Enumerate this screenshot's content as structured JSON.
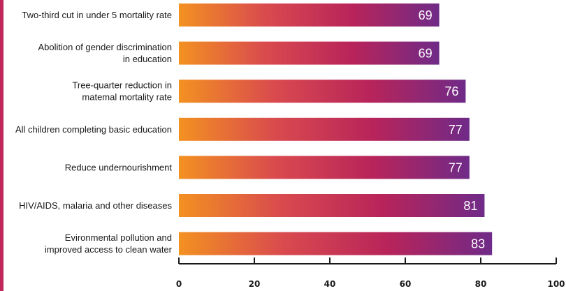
{
  "chart_data": {
    "type": "bar",
    "orientation": "horizontal",
    "categories": [
      "Two-third cut in under 5 mortality rate",
      "Abolition of gender discrimination in education",
      "Tree-quarter reduction in matemal mortality rate",
      "All children completing basic education",
      "Reduce undernourishment",
      "HIV/AIDS, malaria and other diseases",
      "Evironmental pollution and improved access to clean water"
    ],
    "category_lines": [
      [
        "Two-third cut in under 5 mortality rate"
      ],
      [
        "Abolition of gender discrimination",
        "in education"
      ],
      [
        "Tree-quarter reduction in",
        "matemal mortality rate"
      ],
      [
        "All children completing basic education"
      ],
      [
        "Reduce undernourishment"
      ],
      [
        "HIV/AIDS, malaria and other diseases"
      ],
      [
        "Evironmental pollution and",
        "improved access to clean water"
      ]
    ],
    "values": [
      69,
      69,
      76,
      77,
      77,
      81,
      83
    ],
    "value_labels": [
      "69",
      "69",
      "76",
      "77",
      "77",
      "81",
      "83"
    ],
    "xlim": [
      0,
      100
    ],
    "ticks": [
      0,
      20,
      40,
      60,
      80,
      100
    ],
    "tick_labels": [
      "0",
      "20",
      "40",
      "60",
      "80",
      "100"
    ],
    "grid": false,
    "legend": "none",
    "bar_gradient": [
      "#f39121",
      "#d94a4e",
      "#b8245a",
      "#6f2a88"
    ],
    "accent_edge_color": "#c1275a",
    "axis_color": "#1a1a1a"
  }
}
